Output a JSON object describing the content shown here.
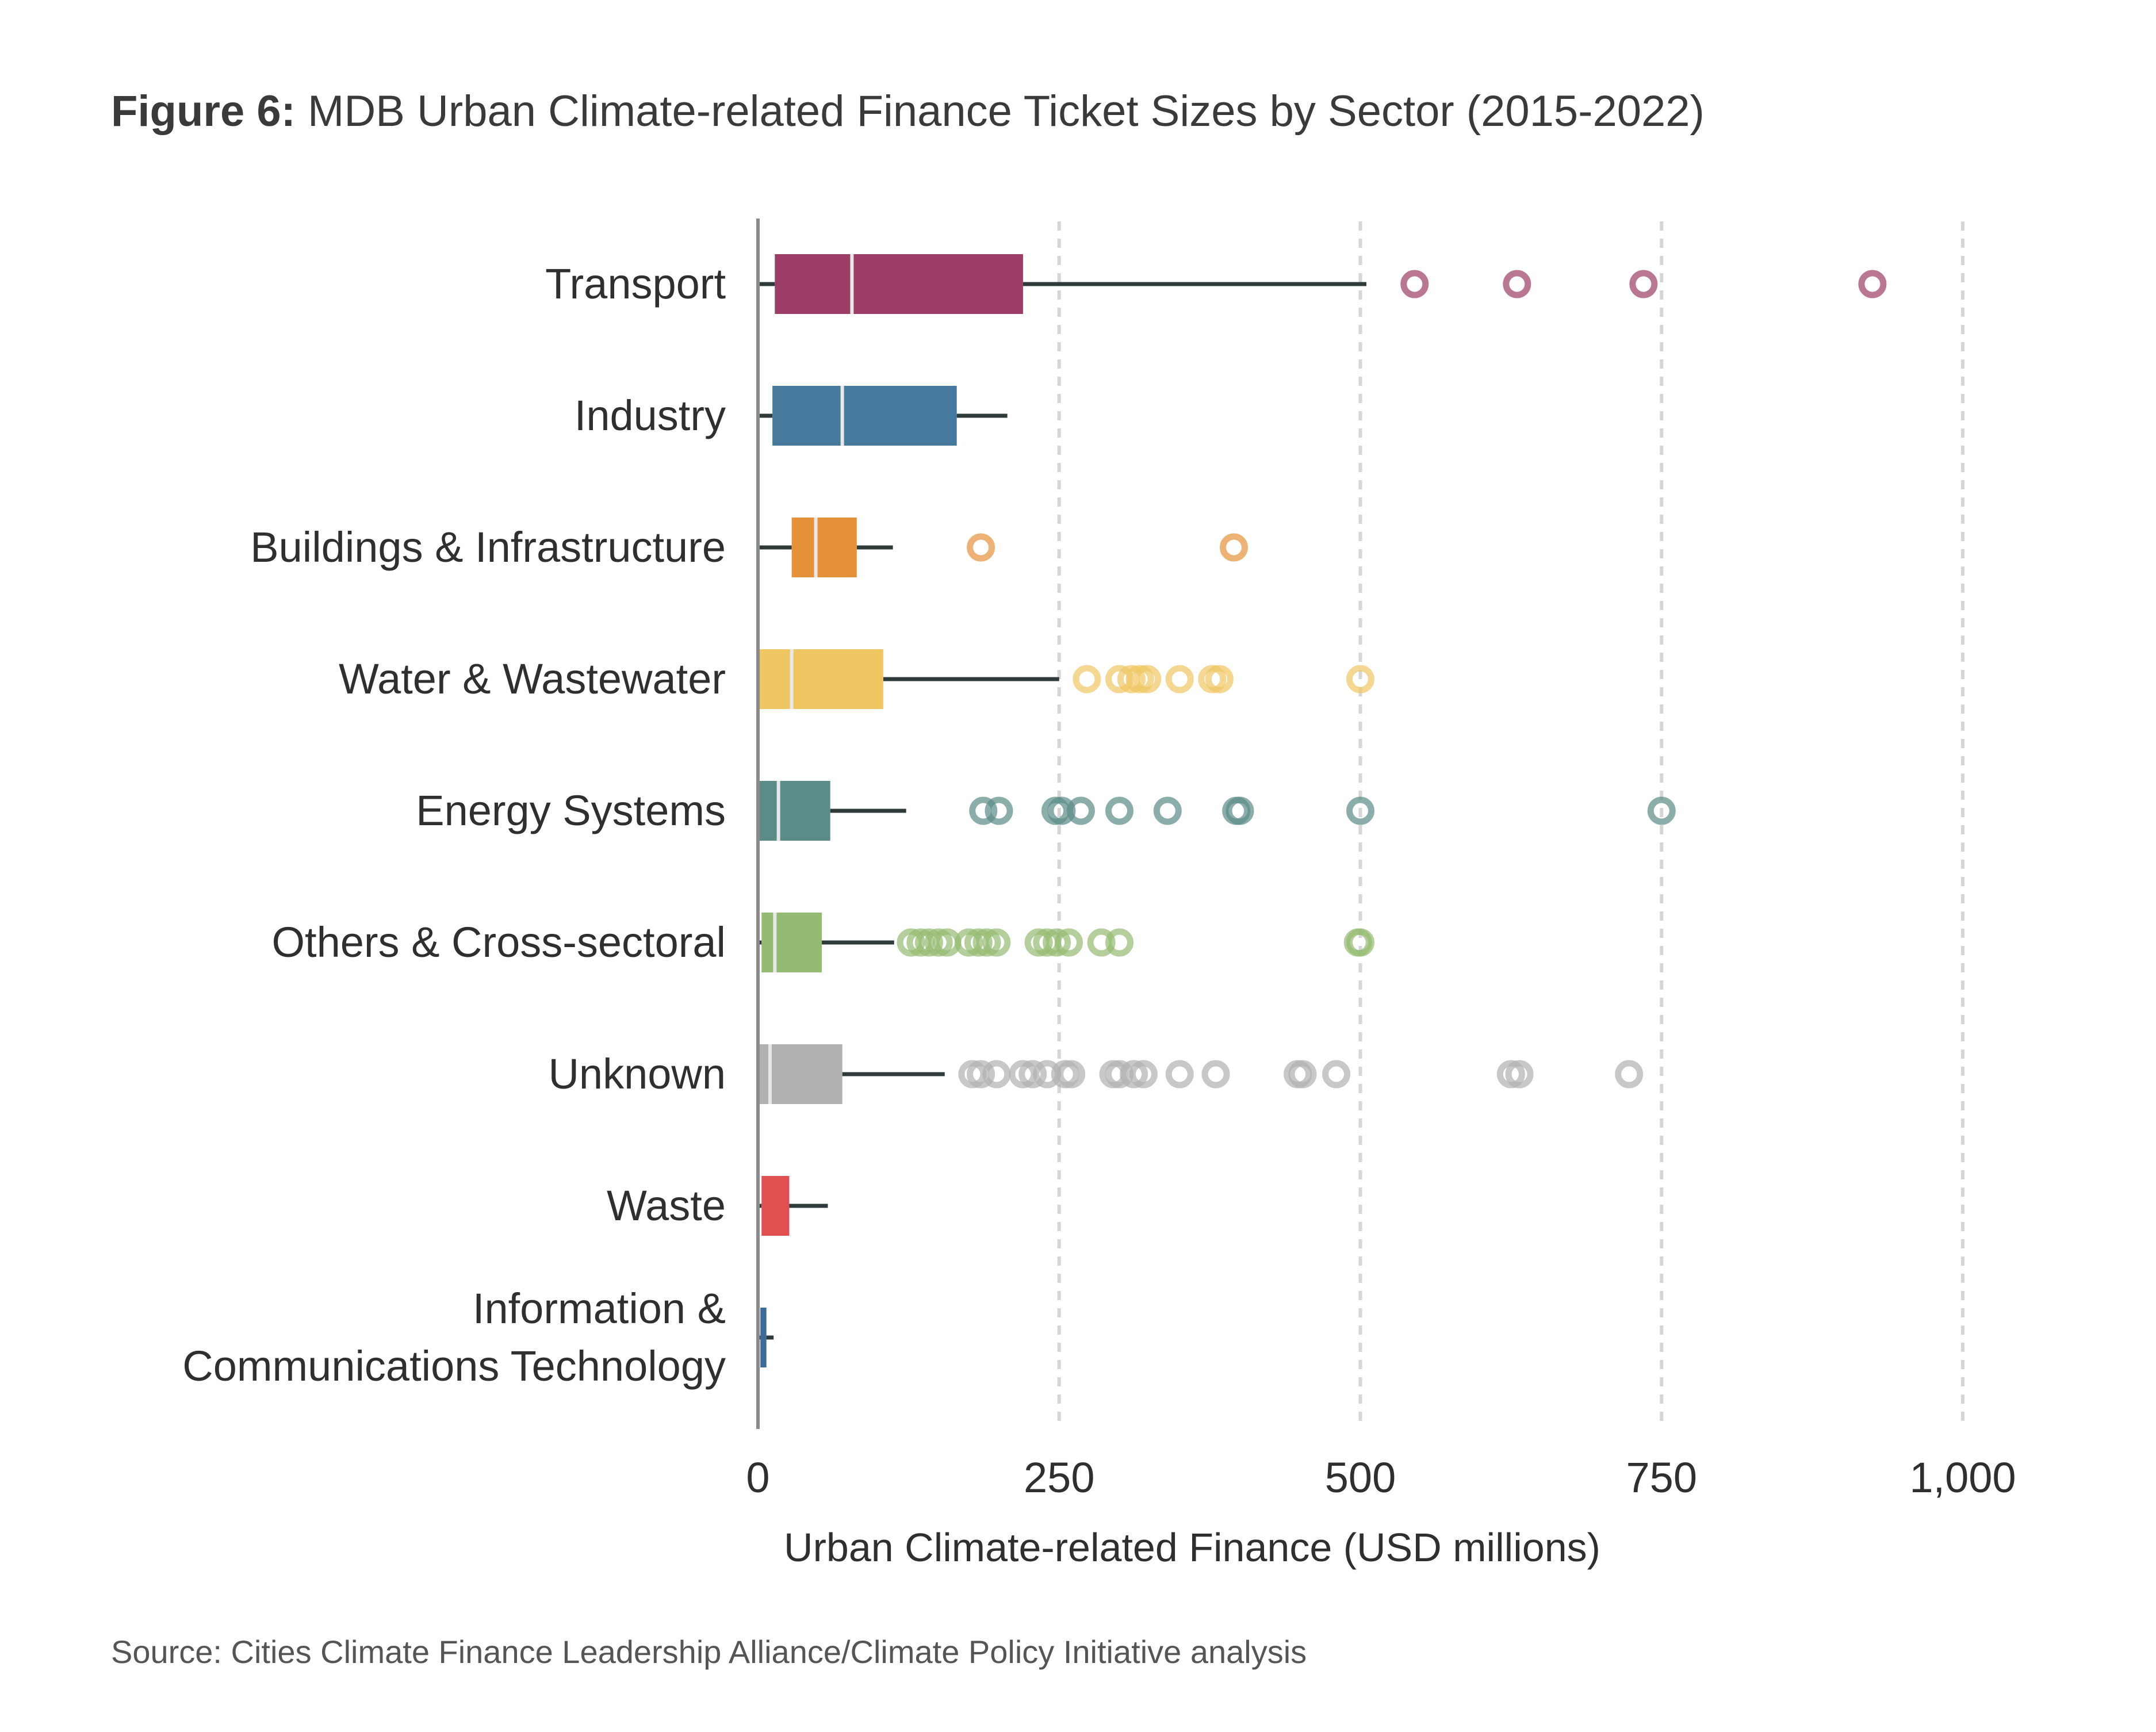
{
  "figure": {
    "title_prefix": "Figure 6:",
    "title_text": "MDB Urban Climate-related Finance Ticket Sizes by Sector (2015-2022)",
    "source": "Source: Cities Climate Finance Leadership Alliance/Climate Policy Initiative analysis"
  },
  "chart_data": {
    "type": "box",
    "orientation": "horizontal",
    "xlabel": "Urban Climate-related Finance (USD millions)",
    "xlim": [
      0,
      1000
    ],
    "xticks": [
      0,
      250,
      500,
      750,
      1000
    ],
    "xtick_labels": [
      "0",
      "250",
      "500",
      "750",
      "1,000"
    ],
    "grid": "vertical dashed at 250, 500, 750, 1000",
    "categories": [
      {
        "name": "Transport",
        "lines": [
          "Transport"
        ],
        "color": "#9b3d67",
        "whisker_low": 0,
        "q1": 14,
        "median": 78,
        "q3": 220,
        "whisker_high": 505,
        "outliers": [
          545,
          630,
          735,
          925
        ]
      },
      {
        "name": "Industry",
        "lines": [
          "Industry"
        ],
        "color": "#467a9c",
        "whisker_low": 0,
        "q1": 12,
        "median": 70,
        "q3": 165,
        "whisker_high": 207,
        "outliers": []
      },
      {
        "name": "Buildings & Infrastructure",
        "lines": [
          "Buildings & Infrastructure"
        ],
        "color": "#e5913a",
        "whisker_low": 0,
        "q1": 28,
        "median": 48,
        "q3": 82,
        "whisker_high": 112,
        "outliers": [
          185,
          395
        ]
      },
      {
        "name": "Water & Wastewater",
        "lines": [
          "Water & Wastewater"
        ],
        "color": "#f0c662",
        "whisker_low": 0,
        "q1": 0,
        "median": 28,
        "q3": 104,
        "whisker_high": 250,
        "outliers": [
          273,
          300,
          310,
          317,
          323,
          350,
          377,
          383,
          500
        ]
      },
      {
        "name": "Energy Systems",
        "lines": [
          "Energy Systems"
        ],
        "color": "#5b8c88",
        "whisker_low": 0,
        "q1": 0,
        "median": 17,
        "q3": 60,
        "whisker_high": 123,
        "outliers": [
          187,
          200,
          247,
          252,
          268,
          300,
          340,
          397,
          400,
          500,
          750
        ]
      },
      {
        "name": "Others & Cross-sectoral",
        "lines": [
          "Others & Cross-sectoral"
        ],
        "color": "#95bb72",
        "whisker_low": 0,
        "q1": 3,
        "median": 14,
        "q3": 53,
        "whisker_high": 113,
        "outliers": [
          127,
          135,
          142,
          150,
          157,
          175,
          183,
          190,
          198,
          233,
          240,
          248,
          258,
          285,
          300,
          498,
          500
        ]
      },
      {
        "name": "Unknown",
        "lines": [
          "Unknown"
        ],
        "color": "#b0b0b0",
        "whisker_low": 0,
        "q1": 0,
        "median": 10,
        "q3": 70,
        "whisker_high": 155,
        "outliers": [
          178,
          185,
          198,
          220,
          228,
          240,
          255,
          260,
          295,
          300,
          312,
          320,
          350,
          380,
          448,
          452,
          480,
          625,
          632,
          723
        ]
      },
      {
        "name": "Waste",
        "lines": [
          "Waste"
        ],
        "color": "#e05050",
        "whisker_low": 0,
        "q1": 3,
        "median": 3,
        "q3": 26,
        "whisker_high": 58,
        "outliers": []
      },
      {
        "name": "Information & Communications Technology",
        "lines": [
          "Information &",
          "Communications Technology"
        ],
        "color": "#3d6a96",
        "whisker_low": 0,
        "q1": 2,
        "median": 2,
        "q3": 7,
        "whisker_high": 13,
        "outliers": []
      }
    ]
  }
}
